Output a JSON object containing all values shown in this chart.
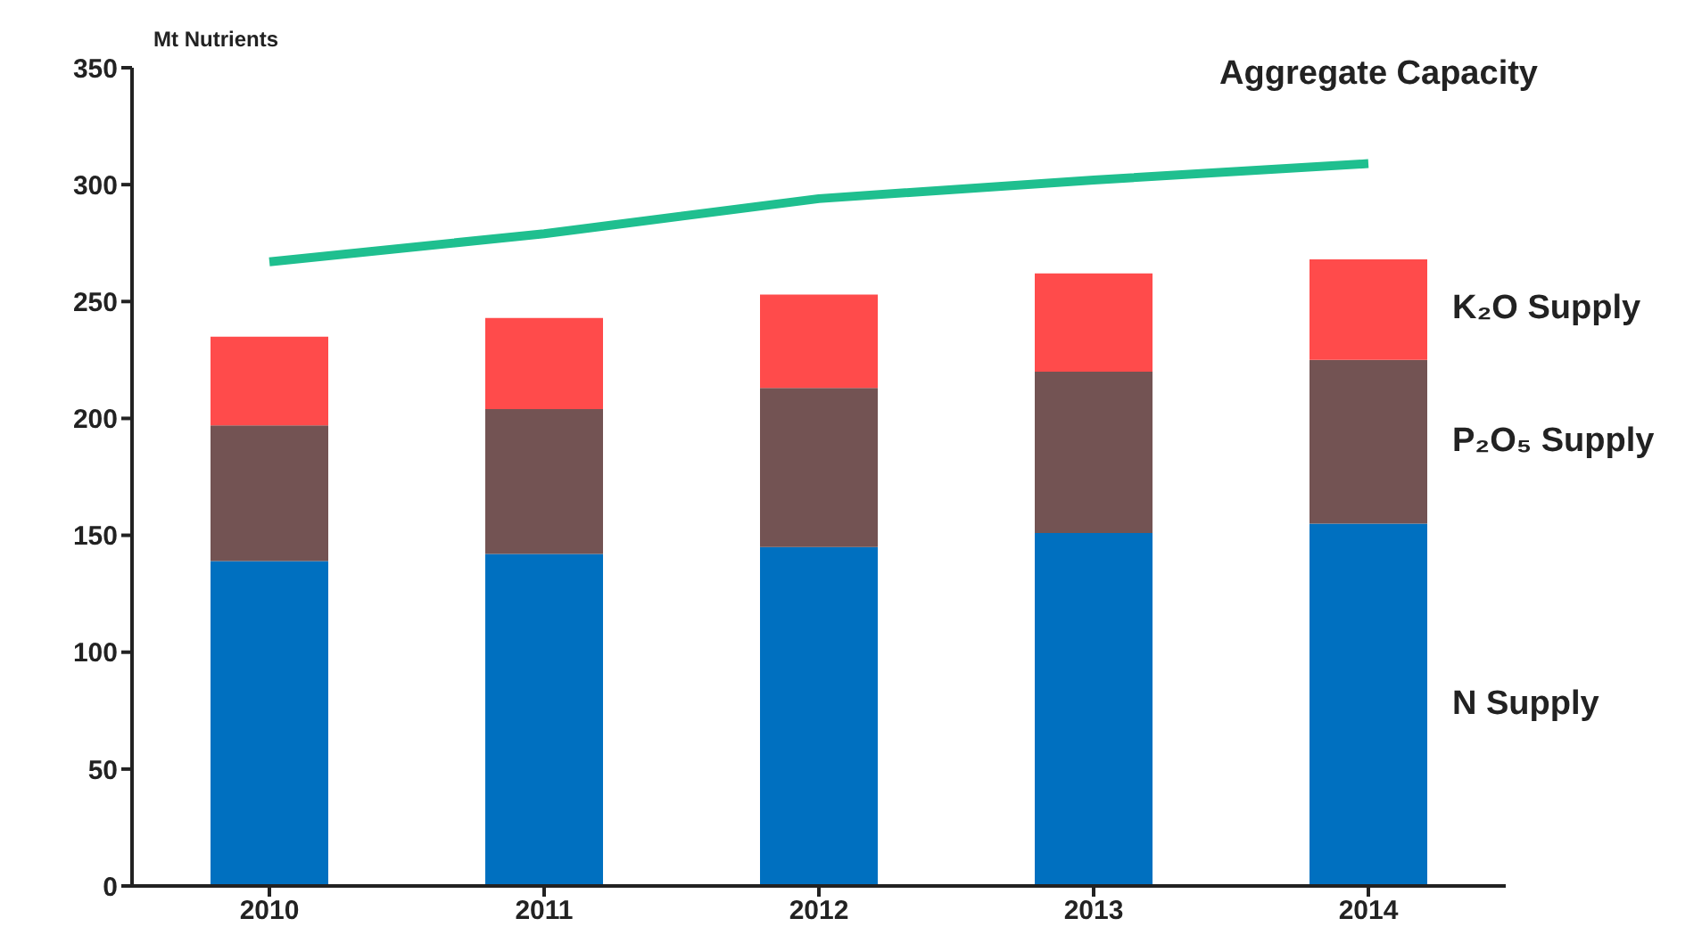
{
  "chart_data": {
    "type": "bar",
    "stacked": true,
    "ylabel": "Mt Nutrients",
    "categories": [
      "2010",
      "2011",
      "2012",
      "2013",
      "2014"
    ],
    "series": [
      {
        "name": "N Supply",
        "color": "#0070c0",
        "values": [
          139,
          142,
          145,
          151,
          155
        ]
      },
      {
        "name": "P₂O₅ Supply",
        "color": "#735353",
        "values": [
          58,
          62,
          68,
          69,
          70
        ]
      },
      {
        "name": "K₂O Supply",
        "color": "#ff4b4b",
        "values": [
          38,
          39,
          40,
          42,
          43
        ]
      },
      {
        "name": "Aggregate Capacity",
        "type": "line",
        "color": "#1fbf8f",
        "values": [
          267,
          279,
          294,
          302,
          309
        ]
      }
    ],
    "ylim": [
      0,
      350
    ],
    "yticks": [
      0,
      50,
      100,
      150,
      200,
      250,
      300,
      350
    ],
    "grid": false,
    "legend": false,
    "marker": "none"
  }
}
